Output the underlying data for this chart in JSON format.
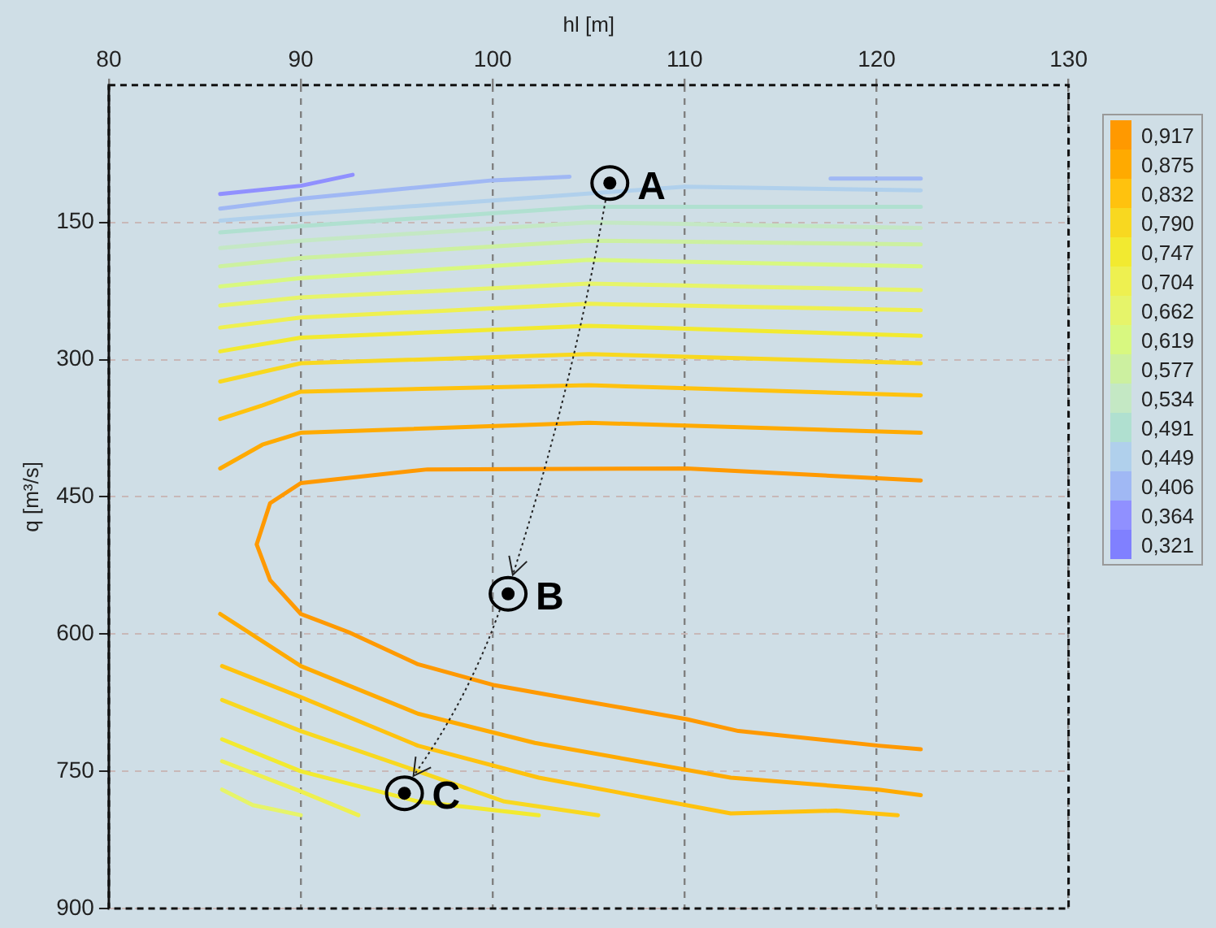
{
  "chart_data": {
    "type": "line",
    "xlabel": "hl [m]",
    "ylabel": "q [m³/s]",
    "xlim": [
      80,
      130
    ],
    "xticks": [
      80,
      90,
      100,
      110,
      120,
      130
    ],
    "ylim": [
      900,
      0
    ],
    "yticks": [
      150,
      300,
      450,
      600,
      750,
      900
    ],
    "grid": true,
    "legend": "right",
    "marker": "none",
    "line_style": "solid",
    "series": [
      {
        "name": "0,917",
        "color": "#ff9900",
        "x": [
          122.3,
          110.1,
          96.6,
          90,
          88.4,
          87.7,
          88.4,
          90,
          92.5,
          96.1,
          100.1,
          103.6,
          110.1,
          112.8,
          120.1,
          122.3
        ],
        "values": [
          432,
          419,
          420,
          435,
          457,
          502,
          541,
          578,
          598,
          633,
          656,
          669,
          693,
          706,
          722,
          726
        ]
      },
      {
        "name": "0,875",
        "color": "#ffaa00",
        "x": [
          85.8,
          88,
          90,
          105,
          122.3,
          null,
          85.8,
          90,
          96.1,
          102.2,
          112.4,
          120.1,
          122.3
        ],
        "values": [
          419,
          393,
          380,
          369,
          380,
          null,
          578,
          635,
          687,
          719,
          757,
          770,
          776
        ]
      },
      {
        "name": "0,832",
        "color": "#ffc20e",
        "x": [
          85.8,
          88,
          90,
          105,
          122.3,
          null,
          85.9,
          90,
          96.1,
          102.4,
          112.4,
          117.9,
          121.1
        ],
        "values": [
          365,
          350,
          335,
          328,
          339,
          null,
          635,
          669,
          722,
          757,
          796,
          793,
          798
        ]
      },
      {
        "name": "0,790",
        "color": "#f8d820",
        "x": [
          85.8,
          90,
          105,
          122.3,
          null,
          85.9,
          90,
          96.1,
          100.6,
          105.5
        ],
        "values": [
          324,
          304,
          294,
          304,
          null,
          672,
          706,
          750,
          783,
          798
        ]
      },
      {
        "name": "0,747",
        "color": "#f2ea30",
        "x": [
          85.8,
          90,
          105,
          122.3,
          null,
          85.9,
          90,
          96.1,
          102.4
        ],
        "values": [
          291,
          276,
          263,
          274,
          null,
          715,
          750,
          783,
          798
        ]
      },
      {
        "name": "0,704",
        "color": "#eef050",
        "x": [
          85.8,
          90,
          105,
          122.3,
          null,
          85.9,
          90,
          93.0
        ],
        "values": [
          265,
          254,
          239,
          246,
          null,
          739,
          772,
          798
        ]
      },
      {
        "name": "0,662",
        "color": "#e6f46a",
        "x": [
          85.8,
          90,
          105,
          122.3,
          null,
          85.9,
          87.5,
          90
        ],
        "values": [
          241,
          232,
          217,
          224,
          null,
          770,
          787,
          798
        ]
      },
      {
        "name": "0,619",
        "color": "#d8f880",
        "x": [
          85.8,
          90,
          105,
          122.3
        ],
        "values": [
          220,
          211,
          191,
          198
        ]
      },
      {
        "name": "0,577",
        "color": "#ccf0a0",
        "x": [
          85.8,
          90,
          105,
          122.3
        ],
        "values": [
          198,
          189,
          170,
          174
        ]
      },
      {
        "name": "0,534",
        "color": "#c4e8c4",
        "x": [
          85.8,
          90,
          105,
          122.3
        ],
        "values": [
          178,
          170,
          150,
          156
        ]
      },
      {
        "name": "0,491",
        "color": "#b0e0d0",
        "x": [
          85.8,
          90,
          105,
          122.3
        ],
        "values": [
          161,
          154,
          133,
          133
        ]
      },
      {
        "name": "0,449",
        "color": "#b0d0ec",
        "x": [
          85.8,
          90,
          100,
          110,
          122.3
        ],
        "values": [
          148,
          141,
          126,
          111,
          115
        ]
      },
      {
        "name": "0,406",
        "color": "#a0b8f4",
        "x": [
          85.8,
          90,
          100,
          104,
          null,
          117.6,
          122.3
        ],
        "values": [
          135,
          124,
          104,
          100,
          null,
          102,
          102
        ]
      },
      {
        "name": "0,364",
        "color": "#9090ff",
        "x": [
          85.8,
          90,
          92.7
        ],
        "values": [
          119,
          110,
          98
        ]
      },
      {
        "name": "0,321",
        "color": "#8080ff"
      }
    ],
    "annotations": [
      {
        "text": "A",
        "x": 106.1,
        "y": 107
      },
      {
        "text": "B",
        "x": 100.8,
        "y": 556
      },
      {
        "text": "C",
        "x": 95.4,
        "y": 774
      }
    ]
  }
}
